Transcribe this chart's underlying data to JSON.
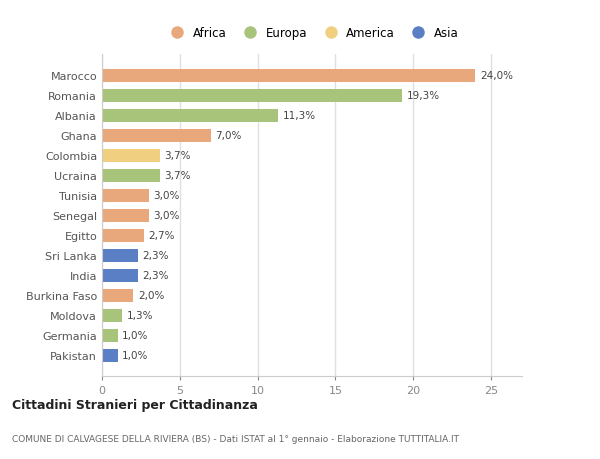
{
  "countries": [
    "Marocco",
    "Romania",
    "Albania",
    "Ghana",
    "Colombia",
    "Ucraina",
    "Tunisia",
    "Senegal",
    "Egitto",
    "Sri Lanka",
    "India",
    "Burkina Faso",
    "Moldova",
    "Germania",
    "Pakistan"
  ],
  "values": [
    24.0,
    19.3,
    11.3,
    7.0,
    3.7,
    3.7,
    3.0,
    3.0,
    2.7,
    2.3,
    2.3,
    2.0,
    1.3,
    1.0,
    1.0
  ],
  "labels": [
    "24,0%",
    "19,3%",
    "11,3%",
    "7,0%",
    "3,7%",
    "3,7%",
    "3,0%",
    "3,0%",
    "2,7%",
    "2,3%",
    "2,3%",
    "2,0%",
    "1,3%",
    "1,0%",
    "1,0%"
  ],
  "colors": [
    "#e8a87c",
    "#a8c47a",
    "#a8c47a",
    "#e8a87c",
    "#f0d080",
    "#a8c47a",
    "#e8a87c",
    "#e8a87c",
    "#e8a87c",
    "#5b7fc4",
    "#5b7fc4",
    "#e8a87c",
    "#a8c47a",
    "#a8c47a",
    "#5b7fc4"
  ],
  "continent_colors": {
    "Africa": "#e8a87c",
    "Europa": "#a8c47a",
    "America": "#f0d080",
    "Asia": "#5b7fc4"
  },
  "title": "Cittadini Stranieri per Cittadinanza",
  "subtitle": "COMUNE DI CALVAGESE DELLA RIVIERA (BS) - Dati ISTAT al 1° gennaio - Elaborazione TUTTITALIA.IT",
  "xlim": [
    0,
    27
  ],
  "xticks": [
    0,
    5,
    10,
    15,
    20,
    25
  ],
  "background_color": "#ffffff",
  "plot_bg_color": "#ffffff",
  "grid_color": "#e0e0e0",
  "bar_height": 0.65
}
